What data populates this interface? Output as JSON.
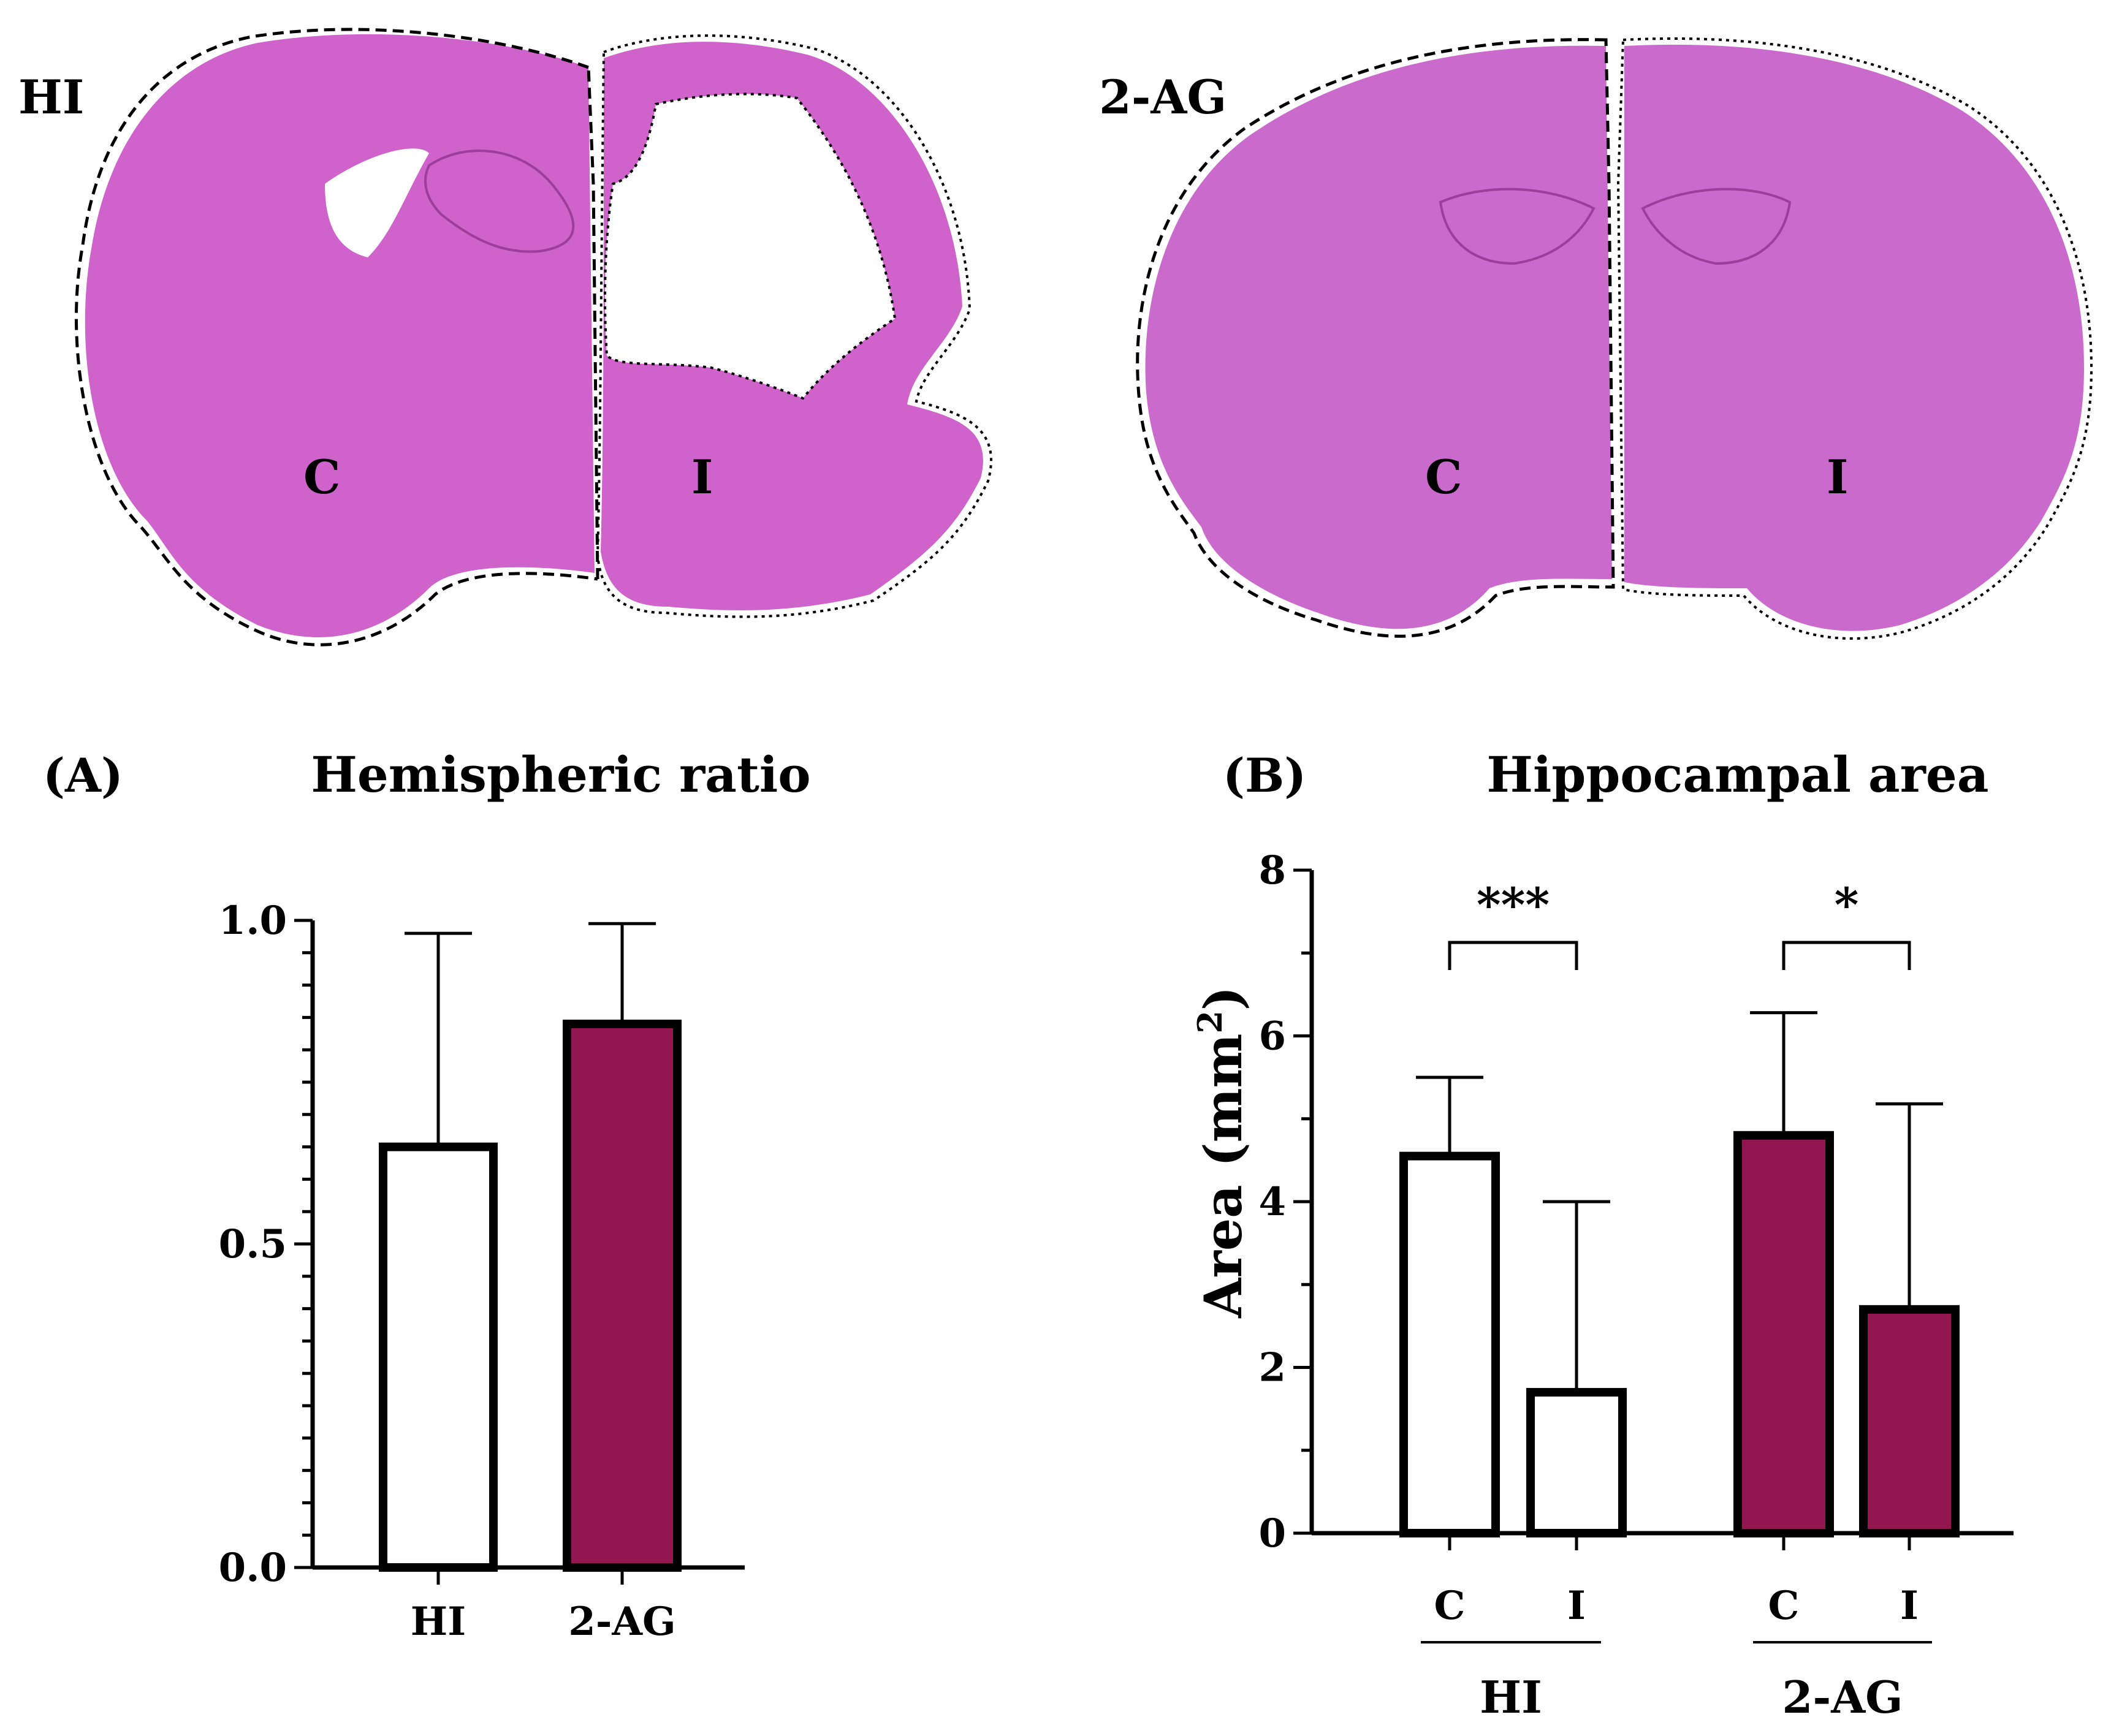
{
  "colors": {
    "bar_hi_fill": "#ffffff",
    "bar_2ag_fill": "#921750",
    "stroke": "#000000",
    "tissue": "#d062cc",
    "tissue_2ag": "#cb6acd"
  },
  "brains": [
    {
      "label": "HI",
      "left_label": "C",
      "right_label": "I"
    },
    {
      "label": "2-AG",
      "left_label": "C",
      "right_label": "I"
    }
  ],
  "chart_data": [
    {
      "type": "bar",
      "panel": "(A)",
      "title": "Hemispheric ratio",
      "categories": [
        "HI",
        "2-AG"
      ],
      "values": [
        0.65,
        0.84
      ],
      "errors": [
        0.33,
        0.155
      ],
      "fills": [
        "#ffffff",
        "#921750"
      ],
      "ylim": [
        0,
        1.0
      ],
      "yticks": [
        0.0,
        0.5,
        1.0
      ],
      "ytick_labels": [
        "0.0",
        "0.5",
        "1.0"
      ],
      "ylabel": ""
    },
    {
      "type": "bar",
      "panel": "(B)",
      "title": "Hippocampal area",
      "groups": [
        "HI",
        "2-AG"
      ],
      "categories": [
        "C",
        "I",
        "C",
        "I"
      ],
      "values": [
        4.55,
        1.7,
        4.8,
        2.7
      ],
      "errors": [
        0.95,
        2.3,
        1.48,
        2.48
      ],
      "fills": [
        "#ffffff",
        "#ffffff",
        "#921750",
        "#921750"
      ],
      "ylim": [
        0,
        8
      ],
      "yticks": [
        0,
        2,
        4,
        6,
        8
      ],
      "ytick_labels": [
        "0",
        "2",
        "4",
        "6",
        "8"
      ],
      "ylabel": "Area (mm",
      "ylabel_sup": "2",
      "ylabel_end": ")",
      "significance": [
        {
          "from": 0,
          "to": 1,
          "label": "***"
        },
        {
          "from": 2,
          "to": 3,
          "label": "*"
        }
      ]
    }
  ]
}
